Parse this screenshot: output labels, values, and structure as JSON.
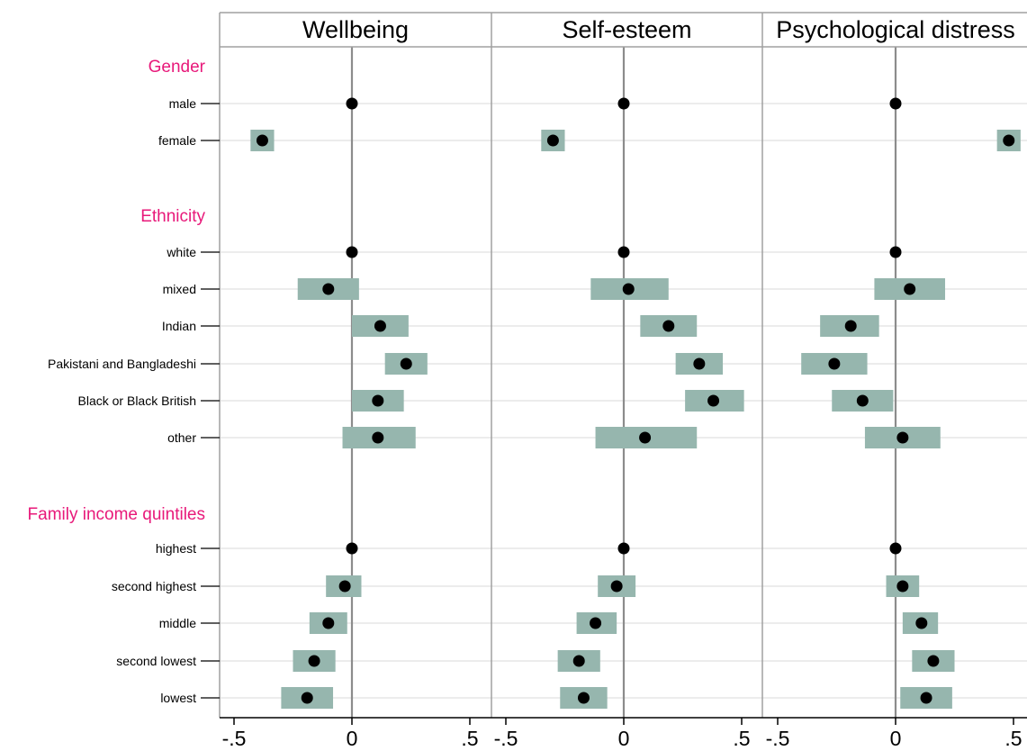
{
  "colors": {
    "ci_fill": "#96b6ae",
    "point": "#000000",
    "group_label": "#e8197a",
    "grid": "#e6e6e6",
    "zero_line": "#8c8c8c",
    "frame": "#a0a0a0"
  },
  "chart_data": {
    "type": "forest",
    "panels": [
      "Wellbeing",
      "Self-esteem",
      "Psychological distress"
    ],
    "x_ticks": [
      -0.5,
      0,
      0.5
    ],
    "x_tick_labels": [
      "-.5",
      "0",
      ".5"
    ],
    "xlim": [
      -0.55,
      0.57
    ],
    "groups": [
      {
        "label": "Gender",
        "rows": [
          {
            "label": "male",
            "estimates": [
              {
                "est": 0,
                "lo": null,
                "hi": null
              },
              {
                "est": 0,
                "lo": null,
                "hi": null
              },
              {
                "est": 0,
                "lo": null,
                "hi": null
              }
            ]
          },
          {
            "label": "female",
            "estimates": [
              {
                "est": -0.38,
                "lo": -0.43,
                "hi": -0.33
              },
              {
                "est": -0.3,
                "lo": -0.35,
                "hi": -0.25
              },
              {
                "est": 0.48,
                "lo": 0.43,
                "hi": 0.53
              }
            ]
          }
        ]
      },
      {
        "label": "Ethnicity",
        "rows": [
          {
            "label": "white",
            "estimates": [
              {
                "est": 0,
                "lo": null,
                "hi": null
              },
              {
                "est": 0,
                "lo": null,
                "hi": null
              },
              {
                "est": 0,
                "lo": null,
                "hi": null
              }
            ]
          },
          {
            "label": "mixed",
            "estimates": [
              {
                "est": -0.1,
                "lo": -0.23,
                "hi": 0.03
              },
              {
                "est": 0.02,
                "lo": -0.14,
                "hi": 0.19
              },
              {
                "est": 0.06,
                "lo": -0.09,
                "hi": 0.21
              }
            ]
          },
          {
            "label": "Indian",
            "estimates": [
              {
                "est": 0.12,
                "lo": 0.0,
                "hi": 0.24
              },
              {
                "est": 0.19,
                "lo": 0.07,
                "hi": 0.31
              },
              {
                "est": -0.19,
                "lo": -0.32,
                "hi": -0.07
              }
            ]
          },
          {
            "label": "Pakistani and Bangladeshi",
            "estimates": [
              {
                "est": 0.23,
                "lo": 0.14,
                "hi": 0.32
              },
              {
                "est": 0.32,
                "lo": 0.22,
                "hi": 0.42
              },
              {
                "est": -0.26,
                "lo": -0.4,
                "hi": -0.12
              }
            ]
          },
          {
            "label": "Black or Black British",
            "estimates": [
              {
                "est": 0.11,
                "lo": 0.0,
                "hi": 0.22
              },
              {
                "est": 0.38,
                "lo": 0.26,
                "hi": 0.51
              },
              {
                "est": -0.14,
                "lo": -0.27,
                "hi": -0.01
              }
            ]
          },
          {
            "label": "other",
            "estimates": [
              {
                "est": 0.11,
                "lo": -0.04,
                "hi": 0.27
              },
              {
                "est": 0.09,
                "lo": -0.12,
                "hi": 0.31
              },
              {
                "est": 0.03,
                "lo": -0.13,
                "hi": 0.19
              }
            ]
          }
        ]
      },
      {
        "label": "Family income quintiles",
        "rows": [
          {
            "label": "highest",
            "estimates": [
              {
                "est": 0,
                "lo": null,
                "hi": null
              },
              {
                "est": 0,
                "lo": null,
                "hi": null
              },
              {
                "est": 0,
                "lo": null,
                "hi": null
              }
            ]
          },
          {
            "label": "second highest",
            "estimates": [
              {
                "est": -0.03,
                "lo": -0.11,
                "hi": 0.04
              },
              {
                "est": -0.03,
                "lo": -0.11,
                "hi": 0.05
              },
              {
                "est": 0.03,
                "lo": -0.04,
                "hi": 0.1
              }
            ]
          },
          {
            "label": "middle",
            "estimates": [
              {
                "est": -0.1,
                "lo": -0.18,
                "hi": -0.02
              },
              {
                "est": -0.12,
                "lo": -0.2,
                "hi": -0.03
              },
              {
                "est": 0.11,
                "lo": 0.03,
                "hi": 0.18
              }
            ]
          },
          {
            "label": "second lowest",
            "estimates": [
              {
                "est": -0.16,
                "lo": -0.25,
                "hi": -0.07
              },
              {
                "est": -0.19,
                "lo": -0.28,
                "hi": -0.1
              },
              {
                "est": 0.16,
                "lo": 0.07,
                "hi": 0.25
              }
            ]
          },
          {
            "label": "lowest",
            "estimates": [
              {
                "est": -0.19,
                "lo": -0.3,
                "hi": -0.08
              },
              {
                "est": -0.17,
                "lo": -0.27,
                "hi": -0.07
              },
              {
                "est": 0.13,
                "lo": 0.02,
                "hi": 0.24
              }
            ]
          }
        ]
      }
    ]
  }
}
